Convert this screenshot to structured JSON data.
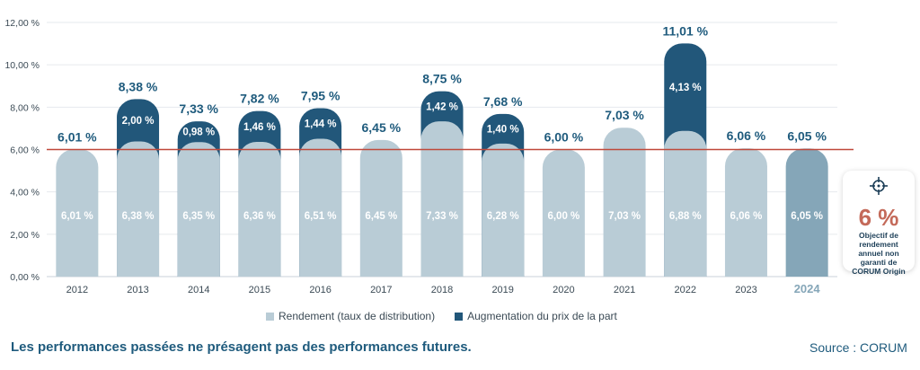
{
  "chart_data": {
    "type": "bar",
    "stacked": true,
    "categories": [
      "2012",
      "2013",
      "2014",
      "2015",
      "2016",
      "2017",
      "2018",
      "2019",
      "2020",
      "2021",
      "2022",
      "2023",
      "2024"
    ],
    "series": [
      {
        "name": "Rendement (taux de distribution)",
        "values": [
          6.01,
          6.38,
          6.35,
          6.36,
          6.51,
          6.45,
          7.33,
          6.28,
          6.0,
          7.03,
          6.88,
          6.06,
          6.05
        ],
        "labels": [
          "6,01 %",
          "6,38 %",
          "6,35 %",
          "6,36 %",
          "6,51 %",
          "6,45 %",
          "7,33 %",
          "6,28 %",
          "6,00 %",
          "7,03 %",
          "6,88 %",
          "6,06 %",
          "6,05 %"
        ]
      },
      {
        "name": "Augmentation du prix de la part",
        "values": [
          0,
          2.0,
          0.98,
          1.46,
          1.44,
          0,
          1.42,
          1.4,
          0,
          0,
          4.13,
          0,
          0
        ],
        "labels": [
          "",
          "2,00 %",
          "0,98 %",
          "1,46 %",
          "1,44 %",
          "",
          "1,42 %",
          "1,40 %",
          "",
          "",
          "4,13 %",
          "",
          ""
        ]
      }
    ],
    "totals": [
      6.01,
      8.38,
      7.33,
      7.82,
      7.95,
      6.45,
      8.75,
      7.68,
      6.0,
      7.03,
      11.01,
      6.06,
      6.05
    ],
    "total_labels": [
      "6,01 %",
      "8,38 %",
      "7,33 %",
      "7,82 %",
      "7,95 %",
      "6,45 %",
      "8,75 %",
      "7,68 %",
      "6,00 %",
      "7,03 %",
      "11,01 %",
      "6,06 %",
      "6,05 %"
    ],
    "highlight_category": "2024",
    "yticks": [
      "0,00 %",
      "2,00 %",
      "4,00 %",
      "6,00 %",
      "8,00 %",
      "10,00 %",
      "12,00 %"
    ],
    "ylim": [
      0,
      12
    ],
    "reference_line": 6.0,
    "colors": {
      "rendement": "#b9ccd6",
      "augmentation": "#22577a",
      "highlight": "#85a6b8",
      "reference": "#c0483a",
      "total_text": "#1f5b7d",
      "axis_text": "#3b4a55"
    }
  },
  "legend": {
    "rendement": "Rendement (taux de distribution)",
    "augmentation": "Augmentation du prix de la part"
  },
  "objective": {
    "value": "6 %",
    "text": "Objectif de rendement annuel non garanti de CORUM Origin"
  },
  "footer": {
    "note": "Les performances passées ne présagent pas des performances futures.",
    "source": "Source : CORUM"
  }
}
